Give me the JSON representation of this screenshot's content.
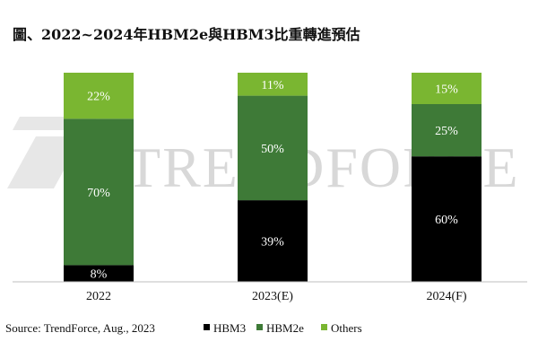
{
  "header": {
    "title": "圖、2022~2024年HBM2e與HBM3比重轉進預估"
  },
  "footer": {
    "source": "Source: TrendForce, Aug., 2023"
  },
  "watermark": {
    "text": "TRENDFORCE"
  },
  "colors": {
    "HBM3": "#000000",
    "HBM2e": "#3e7a37",
    "Others": "#7ab631"
  },
  "chart_data": {
    "type": "bar",
    "stacked": true,
    "categories": [
      "2022",
      "2023(E)",
      "2024(F)"
    ],
    "series": [
      {
        "name": "HBM3",
        "values": [
          8,
          39,
          60
        ],
        "labels": [
          "8%",
          "39%",
          "60%"
        ]
      },
      {
        "name": "HBM2e",
        "values": [
          70,
          50,
          25
        ],
        "labels": [
          "70%",
          "50%",
          "25%"
        ]
      },
      {
        "name": "Others",
        "values": [
          22,
          11,
          15
        ],
        "labels": [
          "22%",
          "11%",
          "15%"
        ]
      }
    ],
    "ylim": [
      0,
      100
    ],
    "grid": false,
    "legend_position": "bottom"
  }
}
